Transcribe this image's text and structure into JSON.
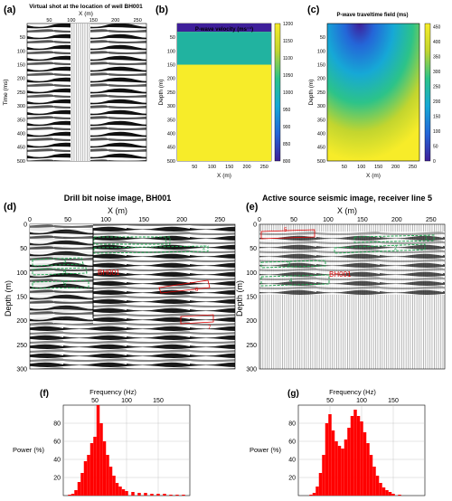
{
  "panel_a": {
    "letter": "(a)",
    "title": "Virtual shot at the location of well BH001",
    "xlabel": "X (m)",
    "ylabel": "Time (ms)",
    "x_ticks": [
      "50",
      "100",
      "150",
      "200",
      "250"
    ],
    "y_ticks": [
      "50",
      "100",
      "150",
      "200",
      "250",
      "300",
      "350",
      "400",
      "450",
      "500"
    ]
  },
  "panel_b": {
    "letter": "(b)",
    "title": "P-wave velocity (ms⁻¹)",
    "xlabel": "X (m)",
    "ylabel": "Depth (m)",
    "x_ticks": [
      "50",
      "100",
      "150",
      "200",
      "250"
    ],
    "y_ticks": [
      "50",
      "100",
      "150",
      "200",
      "250",
      "300",
      "350",
      "400",
      "450",
      "500"
    ],
    "colorbar_ticks": [
      "1200",
      "1150",
      "1100",
      "1050",
      "1000",
      "950",
      "900",
      "850",
      "800"
    ],
    "layers": [
      {
        "top_m": 0,
        "bottom_m": 30,
        "velocity": 800,
        "color": "#3e1f9a"
      },
      {
        "top_m": 30,
        "bottom_m": 150,
        "velocity": 1100,
        "color": "#21b3a0"
      },
      {
        "top_m": 150,
        "bottom_m": 500,
        "velocity": 1200,
        "color": "#f7ec29"
      }
    ]
  },
  "panel_c": {
    "letter": "(c)",
    "title": "P-wave traveltime field (ms)",
    "xlabel": "X (m)",
    "ylabel": "Depth (m)",
    "x_ticks": [
      "50",
      "100",
      "150",
      "200",
      "250"
    ],
    "y_ticks": [
      "50",
      "100",
      "150",
      "200",
      "250",
      "300",
      "350",
      "400",
      "450",
      "500"
    ],
    "colorbar_ticks": [
      "450",
      "400",
      "350",
      "300",
      "250",
      "200",
      "150",
      "100",
      "50",
      "0"
    ]
  },
  "panel_d": {
    "letter": "(d)",
    "title": "Drill bit noise image, BH001",
    "xlabel": "X (m)",
    "ylabel": "Depth (m)",
    "x_ticks": [
      "0",
      "50",
      "100",
      "150",
      "200",
      "250"
    ],
    "y_ticks": [
      "0",
      "50",
      "100",
      "150",
      "200",
      "250",
      "300"
    ],
    "well_label": "BH001",
    "green_labels": [
      "1",
      "2",
      "3",
      "4",
      "5"
    ],
    "red_labels": [
      "6",
      "7"
    ]
  },
  "panel_e": {
    "letter": "(e)",
    "title": "Active source seismic image, receiver line 5",
    "xlabel": "X (m)",
    "ylabel": "Depth (m)",
    "x_ticks": [
      "0",
      "50",
      "100",
      "150",
      "200",
      "250"
    ],
    "y_ticks": [
      "0",
      "50",
      "100",
      "150",
      "200",
      "250",
      "300"
    ],
    "well_label": "BH001",
    "green_labels": [
      "1",
      "2",
      "3",
      "4"
    ],
    "red_labels": [
      "5"
    ]
  },
  "panel_f": {
    "letter": "(f)",
    "title": "Frequency (Hz)",
    "ylabel": "Power (%)",
    "x_ticks": [
      "50",
      "100",
      "150"
    ],
    "y_ticks": [
      "80",
      "60",
      "40",
      "20"
    ]
  },
  "panel_g": {
    "letter": "(g)",
    "title": "Frequency (Hz)",
    "ylabel": "Power (%)",
    "x_ticks": [
      "50",
      "100",
      "150"
    ],
    "y_ticks": [
      "80",
      "60",
      "40",
      "20"
    ]
  },
  "chart_data": [
    {
      "type": "bar",
      "panel": "f",
      "xlabel": "Frequency (Hz)",
      "ylabel": "Power (%)",
      "xlim": [
        0,
        200
      ],
      "ylim": [
        0,
        100
      ],
      "x": [
        10,
        15,
        20,
        25,
        30,
        35,
        40,
        45,
        50,
        55,
        60,
        65,
        70,
        75,
        80,
        85,
        90,
        95,
        100,
        110,
        120,
        130,
        140,
        150,
        160,
        170,
        180,
        190
      ],
      "values": [
        1,
        2,
        6,
        15,
        25,
        38,
        45,
        58,
        65,
        100,
        80,
        60,
        45,
        32,
        22,
        14,
        10,
        7,
        5,
        4,
        3,
        3,
        2,
        2,
        2,
        1,
        1,
        1
      ],
      "color": "#ff0000"
    },
    {
      "type": "bar",
      "panel": "g",
      "xlabel": "Frequency (Hz)",
      "ylabel": "Power (%)",
      "xlim": [
        0,
        200
      ],
      "ylim": [
        0,
        100
      ],
      "x": [
        20,
        25,
        30,
        35,
        40,
        45,
        50,
        55,
        60,
        65,
        70,
        75,
        80,
        85,
        90,
        95,
        100,
        105,
        110,
        115,
        120,
        125,
        130,
        135,
        140,
        145,
        150,
        160
      ],
      "values": [
        1,
        3,
        10,
        25,
        45,
        80,
        90,
        72,
        60,
        55,
        52,
        62,
        75,
        88,
        95,
        88,
        82,
        70,
        58,
        45,
        32,
        22,
        14,
        9,
        6,
        4,
        2,
        1
      ],
      "color": "#ff0000"
    }
  ]
}
